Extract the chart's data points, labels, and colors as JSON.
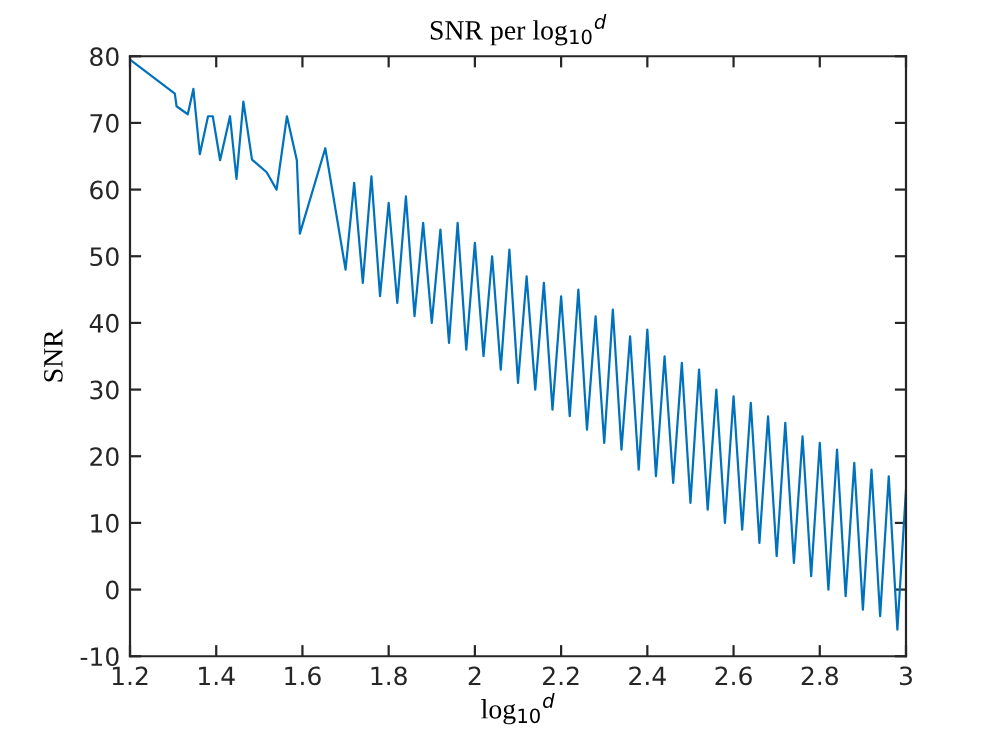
{
  "chart_data": {
    "type": "line",
    "title": "SNR per log$_{10}$$^{d}$",
    "xlabel": "log$_{10}$$^{d}$",
    "ylabel": "SNR",
    "series": [
      {
        "color": "#0072bd",
        "x": [
          1.2,
          1.304,
          1.308,
          1.334,
          1.347,
          1.362,
          1.381,
          1.392,
          1.409,
          1.432,
          1.447,
          1.463,
          1.483,
          1.517,
          1.54,
          1.564,
          1.587,
          1.594,
          1.653,
          1.7,
          1.72,
          1.74,
          1.76,
          1.78,
          1.8,
          1.82,
          1.84,
          1.86,
          1.88,
          1.9,
          1.92,
          1.94,
          1.96,
          1.98,
          2.0,
          2.02,
          2.04,
          2.06,
          2.08,
          2.1,
          2.12,
          2.14,
          2.16,
          2.18,
          2.2,
          2.22,
          2.24,
          2.26,
          2.28,
          2.3,
          2.32,
          2.34,
          2.36,
          2.38,
          2.4,
          2.42,
          2.44,
          2.46,
          2.48,
          2.5,
          2.52,
          2.54,
          2.56,
          2.58,
          2.6,
          2.62,
          2.64,
          2.66,
          2.68,
          2.7,
          2.72,
          2.74,
          2.76,
          2.78,
          2.8,
          2.82,
          2.84,
          2.86,
          2.88,
          2.9,
          2.92,
          2.94,
          2.96,
          2.98,
          3.0
        ],
        "values": [
          79.5,
          74.4,
          72.5,
          71.3,
          75.1,
          65.3,
          71,
          71,
          64.4,
          71,
          61.6,
          73.2,
          64.5,
          62.6,
          60,
          71,
          64.4,
          53.4,
          66.2,
          48,
          61,
          46,
          62,
          44,
          58,
          43,
          59,
          41,
          55,
          40,
          54,
          37,
          55,
          36,
          52,
          35,
          50,
          33,
          51,
          31,
          47,
          30,
          46,
          27,
          44,
          26,
          45,
          24,
          41,
          22,
          42,
          21,
          38,
          18,
          39,
          17,
          35,
          16,
          34,
          13,
          33,
          12,
          30,
          10,
          29,
          9,
          28,
          7,
          26,
          5,
          25,
          4,
          23,
          2,
          22,
          0,
          21,
          -1,
          19,
          -3,
          18,
          -4,
          17,
          -6,
          15
        ]
      }
    ],
    "xlim": [
      1.2,
      3
    ],
    "xticks": [
      1.2,
      1.4,
      1.6,
      1.8,
      2,
      2.2,
      2.4,
      2.6,
      2.8,
      3
    ],
    "ylim": [
      -10,
      80
    ],
    "yticks": [
      -10,
      0,
      10,
      20,
      30,
      40,
      50,
      60,
      70,
      80
    ],
    "grid": false,
    "marker": "none",
    "line_style": "solid"
  }
}
